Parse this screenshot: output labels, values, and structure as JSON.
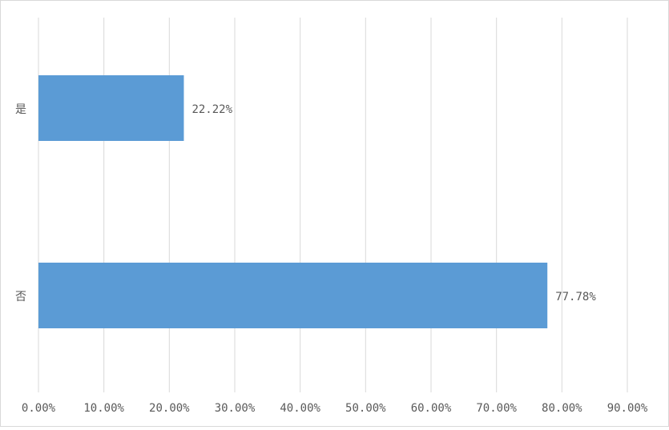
{
  "chart_data": {
    "type": "hbar",
    "categories": [
      "是",
      "否"
    ],
    "values": [
      22.22,
      77.78
    ],
    "value_labels": [
      "22.22%",
      "77.78%"
    ],
    "color": "#5b9bd5",
    "xlim": [
      0,
      90
    ],
    "xticks": [
      {
        "value": 0,
        "label": "0.00%"
      },
      {
        "value": 10,
        "label": "10.00%"
      },
      {
        "value": 20,
        "label": "20.00%"
      },
      {
        "value": 30,
        "label": "30.00%"
      },
      {
        "value": 40,
        "label": "40.00%"
      },
      {
        "value": 50,
        "label": "50.00%"
      },
      {
        "value": 60,
        "label": "60.00%"
      },
      {
        "value": 70,
        "label": "70.00%"
      },
      {
        "value": 80,
        "label": "80.00%"
      },
      {
        "value": 90,
        "label": "90.00%"
      }
    ],
    "grid": true
  }
}
